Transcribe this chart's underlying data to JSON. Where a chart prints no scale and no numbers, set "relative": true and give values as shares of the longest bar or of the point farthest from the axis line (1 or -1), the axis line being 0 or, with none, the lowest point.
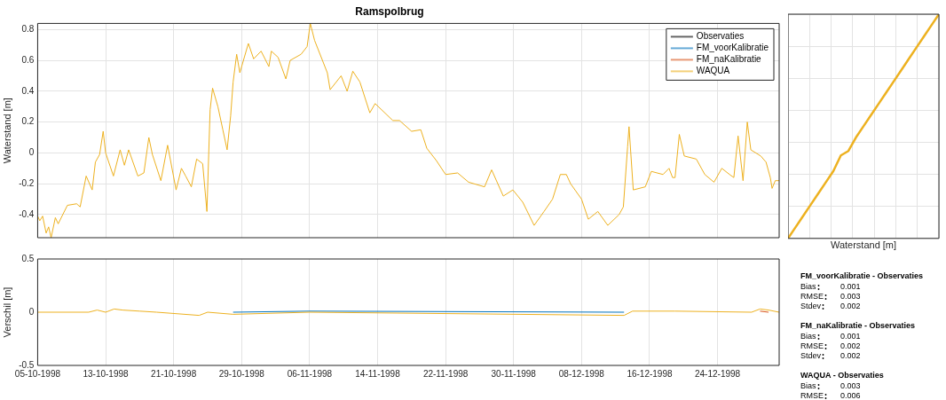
{
  "chart_data": [
    {
      "type": "line",
      "title": "Ramspolbrug",
      "ylabel": "Waterstand [m]",
      "legend": "top right",
      "grid": true,
      "tick_labels": "y",
      "line_style": "solid",
      "marker": "none",
      "xlim": [
        "1998-10-05",
        "1998-12-31T06:00"
      ],
      "ylim": [
        -0.55,
        0.84
      ],
      "yticks": [
        -0.4,
        -0.2,
        0,
        0.2,
        0.4,
        0.6,
        0.8
      ],
      "xticks": [
        {
          "value": "1998-10-05",
          "label": null
        },
        {
          "value": "1998-10-13",
          "label": null
        },
        {
          "value": "1998-10-21",
          "label": null
        },
        {
          "value": "1998-10-29",
          "label": null
        },
        {
          "value": "1998-11-06",
          "label": null
        },
        {
          "value": "1998-11-14",
          "label": null
        },
        {
          "value": "1998-11-22",
          "label": null
        },
        {
          "value": "1998-11-30",
          "label": null
        },
        {
          "value": "1998-12-08",
          "label": null
        },
        {
          "value": "1998-12-16",
          "label": null
        },
        {
          "value": "1998-12-24",
          "label": null
        }
      ],
      "x": [
        "1998-10-05T00:00",
        "1998-10-05T06:00",
        "1998-10-05T14:00",
        "1998-10-06T00:00",
        "1998-10-06T07:00",
        "1998-10-06T14:00",
        "1998-10-07T02:00",
        "1998-10-07T10:00",
        "1998-10-08T12:00",
        "1998-10-09T14:00",
        "1998-10-10T00:00",
        "1998-10-10T17:00",
        "1998-10-11T10:00",
        "1998-10-11T19:00",
        "1998-10-12T07:00",
        "1998-10-12T17:00",
        "1998-10-13T00:00",
        "1998-10-13T22:00",
        "1998-10-14T17:00",
        "1998-10-15T05:00",
        "1998-10-15T17:00",
        "1998-10-16T19:00",
        "1998-10-17T12:00",
        "1998-10-18T02:00",
        "1998-10-18T12:00",
        "1998-10-19T12:00",
        "1998-10-20T07:00",
        "1998-10-21T07:00",
        "1998-10-21T22:00",
        "1998-10-22T10:00",
        "1998-10-23T02:00",
        "1998-10-23T17:00",
        "1998-10-24T10:00",
        "1998-10-24T22:00",
        "1998-10-25T07:00",
        "1998-10-25T14:00",
        "1998-10-26T05:00",
        "1998-10-26T19:00",
        "1998-10-27T07:00",
        "1998-10-27T17:00",
        "1998-10-28T00:00",
        "1998-10-28T10:00",
        "1998-10-28T19:00",
        "1998-10-29T19:00",
        "1998-10-30T10:00",
        "1998-10-31T07:00",
        "1998-11-01T05:00",
        "1998-11-01T12:00",
        "1998-11-02T07:00",
        "1998-11-03T05:00",
        "1998-11-03T17:00",
        "1998-11-05T00:00",
        "1998-11-05T17:00",
        "1998-11-06T02:00",
        "1998-11-06T14:00",
        "1998-11-08T02:00",
        "1998-11-08T10:00",
        "1998-11-09T17:00",
        "1998-11-10T10:00",
        "1998-11-11T02:00",
        "1998-11-11T22:00",
        "1998-11-13T02:00",
        "1998-11-13T17:00",
        "1998-11-15T19:00",
        "1998-11-16T14:00",
        "1998-11-18T00:00",
        "1998-11-19T02:00",
        "1998-11-19T19:00",
        "1998-11-20T22:00",
        "1998-11-22T00:00",
        "1998-11-23T10:00",
        "1998-11-24T17:00",
        "1998-11-26T14:00",
        "1998-11-27T10:00",
        "1998-11-28T19:00",
        "1998-11-29T22:00",
        "1998-12-01T02:00",
        "1998-12-02T10:00",
        "1998-12-03T14:00",
        "1998-12-04T14:00",
        "1998-12-05T12:00",
        "1998-12-06T05:00",
        "1998-12-06T17:00",
        "1998-12-08T00:00",
        "1998-12-08T19:00",
        "1998-12-09T22:00",
        "1998-12-11T02:00",
        "1998-12-12T10:00",
        "1998-12-12T22:00",
        "1998-12-13T10:00",
        "1998-12-13T14:00",
        "1998-12-14T02:00",
        "1998-12-15T12:00",
        "1998-12-16T05:00",
        "1998-12-17T14:00",
        "1998-12-18T07:00",
        "1998-12-18T17:00",
        "1998-12-19T00:00",
        "1998-12-19T12:00",
        "1998-12-20T02:00",
        "1998-12-21T12:00",
        "1998-12-22T12:00",
        "1998-12-23T14:00",
        "1998-12-24T12:00",
        "1998-12-25T10:00",
        "1998-12-25T22:00",
        "1998-12-26T10:00",
        "1998-12-27T00:00",
        "1998-12-27T12:00",
        "1998-12-27T22:00",
        "1998-12-29T02:00",
        "1998-12-29T17:00",
        "1998-12-30T05:00",
        "1998-12-30T10:00",
        "1998-12-30T19:00",
        "1998-12-31T06:00"
      ],
      "series": [
        {
          "name": "Observaties",
          "color": "#000000",
          "values": [
            null,
            null,
            null,
            null,
            null,
            null,
            null,
            null,
            null,
            null,
            null,
            null,
            null,
            null,
            null,
            null,
            null,
            null,
            null,
            null,
            null,
            null,
            null,
            null,
            null,
            null,
            null,
            null,
            null,
            null,
            null,
            null,
            null,
            null,
            null,
            null,
            null,
            null,
            null,
            null,
            null,
            null,
            null,
            null,
            null,
            null,
            null,
            null,
            null,
            null,
            null,
            null,
            null,
            null,
            null,
            null,
            null,
            null,
            null,
            null,
            null,
            null,
            null,
            null,
            null,
            null,
            null,
            null,
            null,
            null,
            null,
            null,
            null,
            null,
            null,
            null,
            null,
            null,
            null,
            null,
            null,
            null,
            null,
            null,
            null,
            null,
            null,
            null,
            null,
            null,
            null,
            null,
            null,
            null,
            null,
            null,
            null,
            null,
            null,
            null,
            null,
            null,
            null,
            null,
            null,
            null,
            null,
            null,
            null,
            null,
            null,
            null,
            null,
            null,
            null,
            null
          ]
        },
        {
          "name": "FM_voorKalibratie",
          "color": "#0072bd",
          "values": [
            null,
            null,
            null,
            null,
            null,
            null,
            null,
            null,
            null,
            null,
            null,
            null,
            null,
            null,
            null,
            null,
            null,
            null,
            null,
            null,
            null,
            null,
            null,
            null,
            null,
            null,
            null,
            null,
            null,
            null,
            null,
            null,
            null,
            null,
            null,
            null,
            null,
            null,
            null,
            null,
            null,
            null,
            null,
            null,
            null,
            null,
            null,
            null,
            null,
            null,
            null,
            null,
            null,
            null,
            null,
            null,
            null,
            null,
            null,
            null,
            null,
            null,
            null,
            null,
            null,
            null,
            null,
            null,
            null,
            null,
            null,
            null,
            null,
            null,
            null,
            null,
            null,
            null,
            null,
            null,
            null,
            null,
            null,
            null,
            null,
            null,
            null,
            null,
            null,
            null,
            null,
            null,
            null,
            null,
            null,
            null,
            null,
            null,
            null,
            null,
            null,
            null,
            null,
            null,
            null,
            null,
            null,
            null,
            null,
            null,
            null,
            null,
            null,
            null,
            null,
            null
          ]
        },
        {
          "name": "FM_naKalibratie",
          "color": "#d95319",
          "values": [
            null,
            null,
            null,
            null,
            null,
            null,
            null,
            null,
            null,
            null,
            null,
            null,
            null,
            null,
            null,
            null,
            null,
            null,
            null,
            null,
            null,
            null,
            null,
            null,
            null,
            null,
            null,
            null,
            null,
            null,
            null,
            null,
            null,
            null,
            null,
            null,
            null,
            null,
            null,
            null,
            null,
            null,
            null,
            null,
            null,
            null,
            null,
            null,
            null,
            null,
            null,
            null,
            null,
            null,
            null,
            null,
            null,
            null,
            null,
            null,
            null,
            null,
            null,
            null,
            null,
            null,
            null,
            null,
            null,
            null,
            null,
            null,
            null,
            null,
            null,
            null,
            null,
            null,
            null,
            null,
            null,
            null,
            null,
            null,
            null,
            null,
            null,
            null,
            null,
            null,
            null,
            null,
            null,
            null,
            null,
            null,
            null,
            null,
            null,
            null,
            null,
            null,
            null,
            null,
            null,
            null,
            null,
            null,
            null,
            null,
            null,
            null,
            null,
            null,
            null,
            null
          ]
        },
        {
          "name": "WAQUA",
          "color": "#edb120",
          "values": [
            -0.41,
            -0.44,
            -0.41,
            -0.52,
            -0.48,
            -0.55,
            -0.42,
            -0.46,
            -0.34,
            -0.33,
            -0.35,
            -0.15,
            -0.24,
            -0.06,
            -0.01,
            0.14,
            0,
            -0.15,
            0.02,
            -0.08,
            0.02,
            -0.15,
            -0.13,
            0.1,
            -0.01,
            -0.18,
            0.05,
            -0.24,
            -0.1,
            -0.15,
            -0.22,
            -0.04,
            -0.07,
            -0.38,
            0.28,
            0.42,
            0.3,
            0.15,
            0.02,
            0.24,
            0.46,
            0.64,
            0.52,
            0.71,
            0.61,
            0.66,
            0.56,
            0.66,
            0.62,
            0.48,
            0.6,
            0.64,
            0.69,
            0.84,
            0.73,
            0.52,
            0.41,
            0.5,
            0.4,
            0.53,
            0.46,
            0.26,
            0.32,
            0.21,
            0.21,
            0.14,
            0.15,
            0.03,
            -0.05,
            -0.14,
            -0.13,
            -0.19,
            -0.22,
            -0.11,
            -0.28,
            -0.24,
            -0.32,
            -0.47,
            -0.38,
            -0.3,
            -0.14,
            -0.14,
            -0.2,
            -0.3,
            -0.43,
            -0.38,
            -0.47,
            -0.4,
            -0.35,
            0.04,
            0.17,
            -0.24,
            -0.22,
            -0.12,
            -0.14,
            -0.1,
            -0.16,
            -0.16,
            0.12,
            -0.02,
            -0.04,
            -0.14,
            -0.19,
            -0.1,
            -0.14,
            -0.16,
            0.11,
            -0.18,
            0.2,
            0.02,
            -0.02,
            -0.06,
            -0.16,
            -0.23,
            -0.18,
            -0.18
          ]
        }
      ]
    },
    {
      "type": "line",
      "xlabel": "Waterstand [m]",
      "relative": true,
      "grid": true,
      "marker": "none",
      "categories": [
        null,
        null,
        null,
        null,
        null,
        null,
        null,
        null,
        null,
        null,
        null,
        null,
        null,
        null,
        null,
        null,
        null,
        null,
        null,
        null,
        null
      ],
      "series": [
        {
          "color": "#edb120",
          "values": [
            0,
            0.05,
            0.1,
            0.15,
            0.2,
            0.25,
            0.3,
            0.37,
            0.39,
            0.45,
            0.5,
            0.55,
            0.6,
            0.65,
            0.7,
            0.75,
            0.8,
            0.85,
            0.9,
            0.95,
            1
          ]
        }
      ]
    },
    {
      "type": "line",
      "ylabel": "Verschil [m]",
      "grid": "x",
      "line_style": "solid",
      "marker": "none",
      "xlim": [
        "1998-10-05",
        "1998-12-31T06:00"
      ],
      "ylim": [
        -0.5,
        0.5
      ],
      "yticks": [
        -0.5,
        0,
        0.5
      ],
      "xticks": [
        {
          "value": "1998-10-05",
          "label": "05-10-1998"
        },
        {
          "value": "1998-10-13",
          "label": "13-10-1998"
        },
        {
          "value": "1998-10-21",
          "label": "21-10-1998"
        },
        {
          "value": "1998-10-29",
          "label": "29-10-1998"
        },
        {
          "value": "1998-11-06",
          "label": "06-11-1998"
        },
        {
          "value": "1998-11-14",
          "label": "14-11-1998"
        },
        {
          "value": "1998-11-22",
          "label": "22-11-1998"
        },
        {
          "value": "1998-11-30",
          "label": "30-11-1998"
        },
        {
          "value": "1998-12-08",
          "label": "08-12-1998"
        },
        {
          "value": "1998-12-16",
          "label": "16-12-1998"
        },
        {
          "value": "1998-12-24",
          "label": "24-12-1998"
        }
      ],
      "x": [
        "1998-10-05",
        "1998-10-11",
        "1998-10-12",
        "1998-10-13",
        "1998-10-14",
        "1998-10-15",
        "1998-10-17",
        "1998-10-19",
        "1998-10-24",
        "1998-10-25",
        "1998-10-28",
        "1998-11-06",
        "1998-12-13",
        "1998-12-14",
        "1998-12-19",
        "1998-12-28",
        "1998-12-29",
        "1998-12-30",
        "1998-12-31T06:00"
      ],
      "series": [
        {
          "color": "#0072bd",
          "values": [
            null,
            null,
            null,
            null,
            null,
            null,
            null,
            null,
            null,
            null,
            0,
            0.01,
            0,
            null,
            null,
            null,
            null,
            null,
            null
          ]
        },
        {
          "color": "#d95319",
          "values": [
            null,
            null,
            null,
            null,
            null,
            null,
            null,
            null,
            null,
            null,
            null,
            null,
            null,
            null,
            null,
            null,
            0.01,
            0,
            null
          ]
        },
        {
          "color": "#edb120",
          "values": [
            0,
            0,
            0.02,
            0,
            0.03,
            0.02,
            0.01,
            0,
            -0.03,
            0,
            -0.02,
            0,
            -0.03,
            0.01,
            0.01,
            0,
            0.03,
            0.02,
            0
          ]
        }
      ]
    },
    {
      "type": "other",
      "title": "FM_voorKalibratie - Observaties",
      "categories": [
        "Bias",
        "RMSE",
        "Stdev"
      ],
      "values": [
        0.001,
        0.003,
        0.002
      ],
      "data_labels": true
    },
    {
      "type": "other",
      "title": "FM_naKalibratie - Observaties",
      "categories": [
        "Bias",
        "RMSE",
        "Stdev"
      ],
      "values": [
        0.001,
        0.002,
        0.002
      ],
      "data_labels": true
    },
    {
      "type": "other",
      "title": "WAQUA - Observaties",
      "categories": [
        "Bias",
        "RMSE"
      ],
      "values": [
        0.003,
        0.006
      ],
      "data_labels": true
    }
  ]
}
